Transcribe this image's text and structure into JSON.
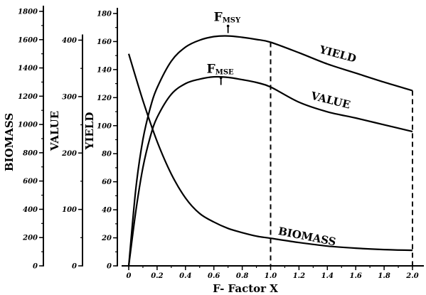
{
  "chart_data": {
    "type": "line",
    "xlabel": "F- Factor X",
    "x_ticks": [
      "0",
      "0.2",
      "0.4",
      "0.6",
      "0.8",
      "1.0",
      "1.2",
      "1.4",
      "1.6",
      "1.8",
      "2.0"
    ],
    "xlim": [
      0,
      2.0
    ],
    "axes": [
      {
        "label": "BIOMASS",
        "ticks": [
          "0",
          "200",
          "400",
          "600",
          "800",
          "1000",
          "1200",
          "1400",
          "1600",
          "1800"
        ],
        "ylim": [
          0,
          1800
        ]
      },
      {
        "label": "VALUE",
        "ticks": [
          "0",
          "100",
          "200",
          "300",
          "400"
        ],
        "ylim": [
          0,
          480
        ]
      },
      {
        "label": "YIELD",
        "ticks": [
          "0",
          "20",
          "40",
          "60",
          "80",
          "100",
          "120",
          "140",
          "160",
          "180"
        ],
        "ylim": [
          0,
          180
        ]
      }
    ],
    "series": [
      {
        "name": "YIELD",
        "axis": "YIELD",
        "x": [
          0,
          0.05,
          0.1,
          0.15,
          0.2,
          0.3,
          0.4,
          0.5,
          0.6,
          0.7,
          0.8,
          0.9,
          1.0,
          1.2,
          1.4,
          1.6,
          1.8,
          2.0
        ],
        "y": [
          0,
          55,
          90,
          112,
          127,
          146,
          156,
          161,
          163.5,
          164,
          163,
          161.5,
          159.5,
          152,
          144,
          137.5,
          131,
          125
        ]
      },
      {
        "name": "VALUE",
        "axis": "VALUE",
        "x": [
          0,
          0.05,
          0.1,
          0.15,
          0.2,
          0.3,
          0.4,
          0.5,
          0.6,
          0.7,
          0.8,
          0.9,
          1.0,
          1.2,
          1.4,
          1.6,
          1.8,
          2.0
        ],
        "y": [
          0,
          97,
          174,
          227,
          263,
          304,
          323,
          331,
          335,
          334,
          330,
          325,
          317,
          290,
          273,
          262,
          250,
          238
        ]
      },
      {
        "name": "BIOMASS",
        "axis": "BIOMASS",
        "x": [
          0,
          0.1,
          0.2,
          0.3,
          0.4,
          0.5,
          0.6,
          0.7,
          0.8,
          0.9,
          1.0,
          1.2,
          1.4,
          1.6,
          1.8,
          2.0
        ],
        "y": [
          1500,
          1170,
          880,
          650,
          480,
          370,
          310,
          265,
          235,
          210,
          195,
          165,
          140,
          125,
          115,
          110
        ]
      }
    ],
    "annotations": [
      {
        "main": "F",
        "sub": "MSY",
        "x": 0.7,
        "axis": "YIELD",
        "y": 164
      },
      {
        "main": "F",
        "sub": "MSE",
        "x": 0.65,
        "axis": "YIELD",
        "y": 127
      }
    ],
    "reference_lines": [
      {
        "x": 1.0,
        "axis": "YIELD",
        "y": 159.5
      },
      {
        "x": 2.0,
        "axis": "YIELD",
        "y": 125
      }
    ],
    "grid": false,
    "legend": "none"
  }
}
